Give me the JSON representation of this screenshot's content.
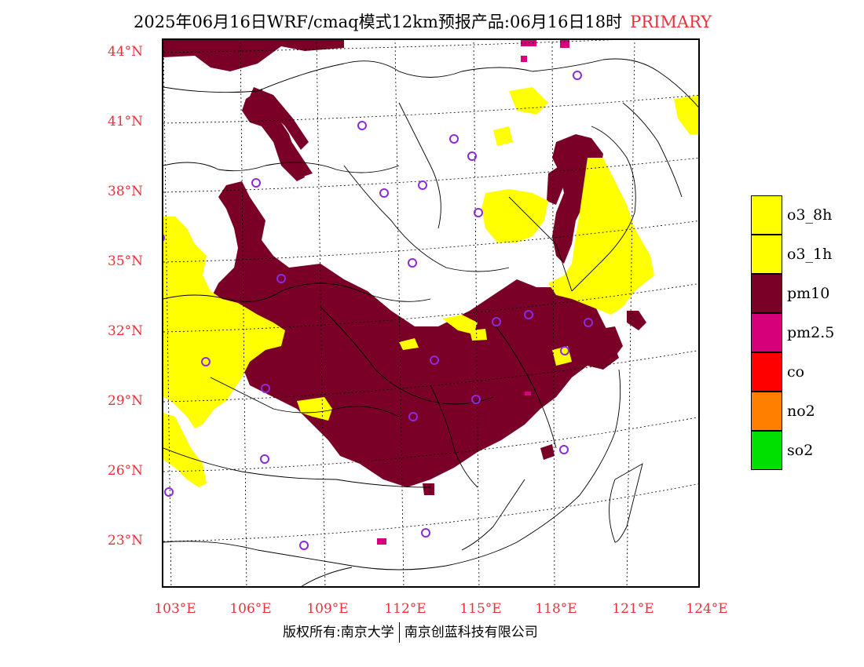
{
  "title": {
    "main": "2025年06月16日WRF/cmaq模式12km预报产品:06月16日18时",
    "tag": "PRIMARY"
  },
  "axes": {
    "lat_labels": [
      "44°N",
      "41°N",
      "38°N",
      "35°N",
      "32°N",
      "29°N",
      "26°N",
      "23°N"
    ],
    "lon_labels": [
      "103°E",
      "106°E",
      "109°E",
      "112°E",
      "115°E",
      "118°E",
      "121°E",
      "124°E"
    ]
  },
  "legend": [
    {
      "label": "o3_8h",
      "color": "#ffff00"
    },
    {
      "label": "o3_1h",
      "color": "#ffff00"
    },
    {
      "label": "pm10",
      "color": "#7a0028"
    },
    {
      "label": "pm2.5",
      "color": "#d6007a"
    },
    {
      "label": "co",
      "color": "#ff0000"
    },
    {
      "label": "no2",
      "color": "#ff7f00"
    },
    {
      "label": "so2",
      "color": "#00e000"
    }
  ],
  "copyright": {
    "left": "版权所有:南京大学",
    "right": "南京创蓝科技有限公司"
  },
  "colors": {
    "accent_text": "#e8323c",
    "pm10": "#7a0028",
    "ozone": "#ffff00",
    "station_marker": "#8a2be2"
  }
}
